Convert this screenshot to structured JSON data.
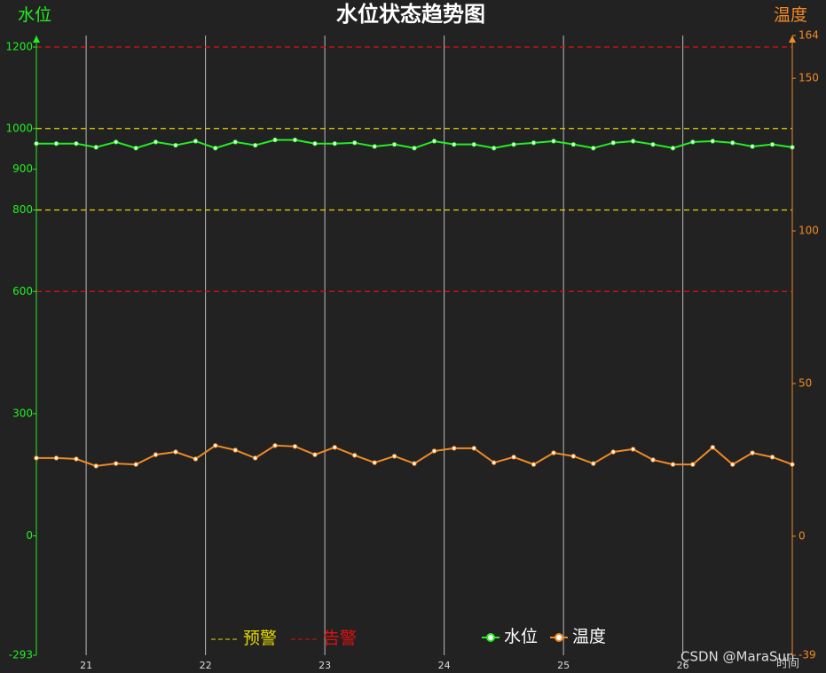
{
  "chart_data": {
    "type": "line",
    "title": "水位状态趋势图",
    "y_label": "水位",
    "y2_label": "温度",
    "x_label": "时间",
    "watermark": "CSDN @MaraSun",
    "x": [
      20.583,
      20.75,
      20.917,
      21.083,
      21.25,
      21.417,
      21.583,
      21.75,
      21.917,
      22.083,
      22.25,
      22.417,
      22.583,
      22.75,
      22.917,
      23.083,
      23.25,
      23.417,
      23.583,
      23.75,
      23.917,
      24.083,
      24.25,
      24.417,
      24.583,
      24.75,
      24.917,
      25.083,
      25.25,
      25.417,
      25.583,
      25.75,
      25.917,
      26.083,
      26.25,
      26.417,
      26.583,
      26.75,
      26.917
    ],
    "xlim": [
      20.583,
      26.917
    ],
    "xticks": [
      21,
      22,
      23,
      24,
      25,
      26
    ],
    "ylim": [
      -293,
      1200
    ],
    "yticks": [
      -293,
      0,
      300,
      600,
      800,
      900,
      1000,
      1200
    ],
    "y2lim": [
      -39,
      164
    ],
    "y2ticks": [
      -39,
      0,
      50,
      100,
      150,
      164
    ],
    "thresholds": [
      {
        "name": "预警",
        "color": "#e6d800",
        "values": [
          800,
          1000
        ]
      },
      {
        "name": "告警",
        "color": "#e01010",
        "values": [
          600,
          1200
        ]
      }
    ],
    "series": [
      {
        "name": "水位",
        "color": "#22ee22",
        "values": [
          963,
          963,
          963,
          954,
          967,
          952,
          967,
          959,
          969,
          952,
          967,
          959,
          972,
          972,
          963,
          963,
          965,
          956,
          961,
          952,
          969,
          961,
          961,
          952,
          961,
          965,
          969,
          961,
          952,
          965,
          969,
          961,
          952,
          967,
          969,
          965,
          956,
          961,
          954
        ]
      },
      {
        "name": "温度",
        "color": "#f08a24",
        "axis": "y2",
        "values": [
          25.6,
          25.6,
          25.3,
          23.0,
          23.8,
          23.5,
          26.7,
          27.6,
          25.3,
          29.7,
          28.2,
          25.6,
          29.7,
          29.4,
          26.7,
          29.1,
          26.5,
          24.1,
          26.2,
          23.8,
          27.9,
          28.8,
          28.8,
          24.1,
          25.9,
          23.5,
          27.3,
          26.2,
          23.8,
          27.6,
          28.5,
          25.0,
          23.5,
          23.5,
          29.1,
          23.5,
          27.3,
          25.9,
          23.5
        ]
      }
    ]
  }
}
